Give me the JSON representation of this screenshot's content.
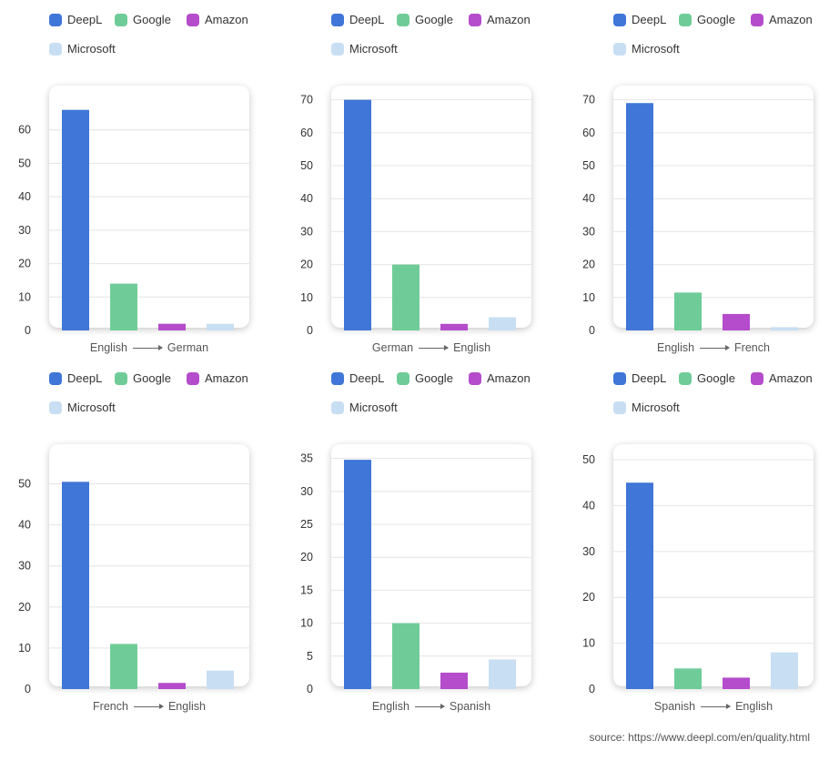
{
  "legend": [
    {
      "name": "DeepL",
      "color": "#3f76d7"
    },
    {
      "name": "Google",
      "color": "#6fcc98"
    },
    {
      "name": "Amazon",
      "color": "#b44ccb"
    },
    {
      "name": "Microsoft",
      "color": "#c8def2"
    }
  ],
  "arrow_icon": "long-right-arrow-icon",
  "chart_data": [
    {
      "type": "bar",
      "from": "English",
      "to": "German",
      "categories": [
        "DeepL",
        "Google",
        "Amazon",
        "Microsoft"
      ],
      "values": [
        66,
        14,
        2,
        2
      ],
      "ylim": [
        0,
        70
      ],
      "yticks": [
        0,
        10,
        20,
        30,
        40,
        50,
        60
      ],
      "grid": true
    },
    {
      "type": "bar",
      "from": "German",
      "to": "English",
      "categories": [
        "DeepL",
        "Google",
        "Amazon",
        "Microsoft"
      ],
      "values": [
        70,
        20,
        2,
        4
      ],
      "ylim": [
        0,
        71
      ],
      "yticks": [
        0,
        10,
        20,
        30,
        40,
        50,
        60,
        70
      ],
      "grid": true
    },
    {
      "type": "bar",
      "from": "English",
      "to": "French",
      "categories": [
        "DeepL",
        "Google",
        "Amazon",
        "Microsoft"
      ],
      "values": [
        69,
        11.5,
        5,
        1
      ],
      "ylim": [
        0,
        71
      ],
      "yticks": [
        0,
        10,
        20,
        30,
        40,
        50,
        60,
        70
      ],
      "grid": true
    },
    {
      "type": "bar",
      "from": "French",
      "to": "English",
      "categories": [
        "DeepL",
        "Google",
        "Amazon",
        "Microsoft"
      ],
      "values": [
        50.5,
        11,
        1.5,
        4.5
      ],
      "ylim": [
        0,
        57
      ],
      "yticks": [
        0,
        10,
        20,
        30,
        40,
        50
      ],
      "grid": true
    },
    {
      "type": "bar",
      "from": "English",
      "to": "Spanish",
      "categories": [
        "DeepL",
        "Google",
        "Amazon",
        "Microsoft"
      ],
      "values": [
        34.8,
        10,
        2.5,
        4.5
      ],
      "ylim": [
        0,
        35.5
      ],
      "yticks": [
        0,
        5,
        10,
        15,
        20,
        25,
        30,
        35
      ],
      "grid": true
    },
    {
      "type": "bar",
      "from": "Spanish",
      "to": "English",
      "categories": [
        "DeepL",
        "Google",
        "Amazon",
        "Microsoft"
      ],
      "values": [
        45,
        4.5,
        2.5,
        8
      ],
      "ylim": [
        0,
        51
      ],
      "yticks": [
        0,
        10,
        20,
        30,
        40,
        50
      ],
      "grid": true
    }
  ],
  "source": "source: https://www.deepl.com/en/quality.html"
}
